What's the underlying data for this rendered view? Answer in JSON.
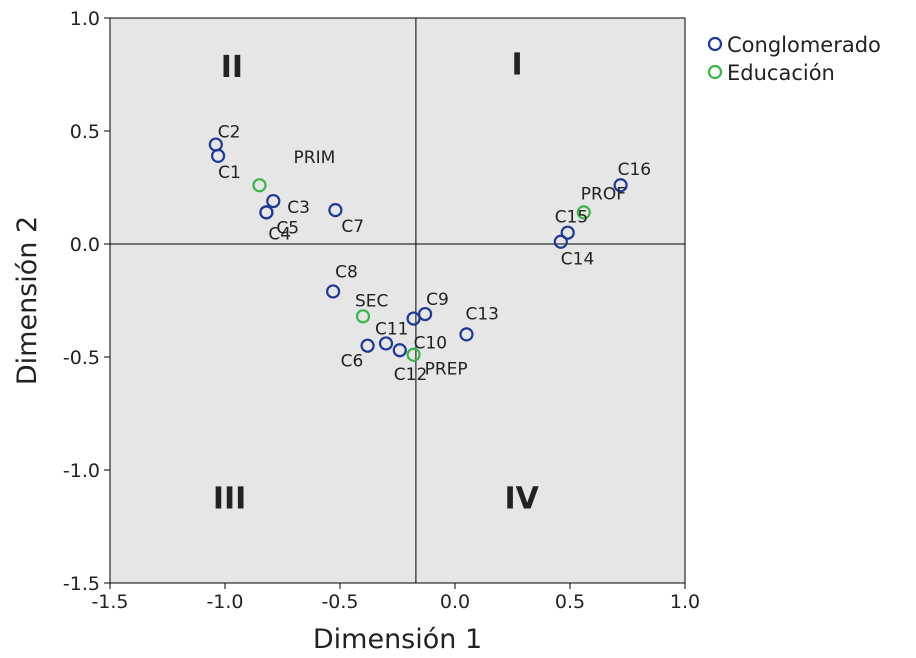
{
  "chart_data": {
    "type": "scatter",
    "xlabel": "Dimensión 1",
    "ylabel": "Dimensión 2",
    "xlim": [
      -1.5,
      1.0
    ],
    "ylim": [
      -1.5,
      1.0
    ],
    "xticks": [
      "-1.5",
      "-1.0",
      "-0.5",
      "0.0",
      "0.5",
      "1.0"
    ],
    "yticks": [
      "1.0",
      "0.5",
      "0.0",
      "-0.5",
      "-1.0",
      "-1.5"
    ],
    "grid": false,
    "plot_background": "#e6e6e6",
    "reference_lines": {
      "x": -0.17,
      "y": 0.0
    },
    "quadrants": [
      {
        "label": "I",
        "x": 0.27,
        "y": 0.75
      },
      {
        "label": "II",
        "x": -0.97,
        "y": 0.74
      },
      {
        "label": "III",
        "x": -0.98,
        "y": -1.17
      },
      {
        "label": "IV",
        "x": 0.29,
        "y": -1.17
      }
    ],
    "legend_position": "top-right",
    "series": [
      {
        "name": "Conglomerado",
        "color": "#1f3a93",
        "points": [
          {
            "label": "C2",
            "x": -1.04,
            "y": 0.44
          },
          {
            "label": "C1",
            "x": -1.03,
            "y": 0.39
          },
          {
            "label": "C3",
            "x": -0.79,
            "y": 0.19
          },
          {
            "label": "C5",
            "x": -0.82,
            "y": 0.14
          },
          {
            "label": "C4",
            "x": -0.82,
            "y": 0.14
          },
          {
            "label": "C7",
            "x": -0.52,
            "y": 0.15
          },
          {
            "label": "C8",
            "x": -0.53,
            "y": -0.21
          },
          {
            "label": "C9",
            "x": -0.13,
            "y": -0.31
          },
          {
            "label": "C10",
            "x": -0.18,
            "y": -0.33
          },
          {
            "label": "C13",
            "x": 0.05,
            "y": -0.4
          },
          {
            "label": "C11",
            "x": -0.3,
            "y": -0.44
          },
          {
            "label": "C6",
            "x": -0.38,
            "y": -0.45
          },
          {
            "label": "C12",
            "x": -0.24,
            "y": -0.47
          },
          {
            "label": "C14",
            "x": 0.46,
            "y": 0.01
          },
          {
            "label": "C15",
            "x": 0.49,
            "y": 0.05
          },
          {
            "label": "C16",
            "x": 0.72,
            "y": 0.26
          }
        ]
      },
      {
        "name": "Educación",
        "color": "#3db54a",
        "points": [
          {
            "label": "PRIM",
            "x": -0.85,
            "y": 0.26
          },
          {
            "label": "SEC",
            "x": -0.4,
            "y": -0.32
          },
          {
            "label": "PREP",
            "x": -0.18,
            "y": -0.49
          },
          {
            "label": "PROF",
            "x": 0.56,
            "y": 0.14
          }
        ]
      }
    ]
  }
}
